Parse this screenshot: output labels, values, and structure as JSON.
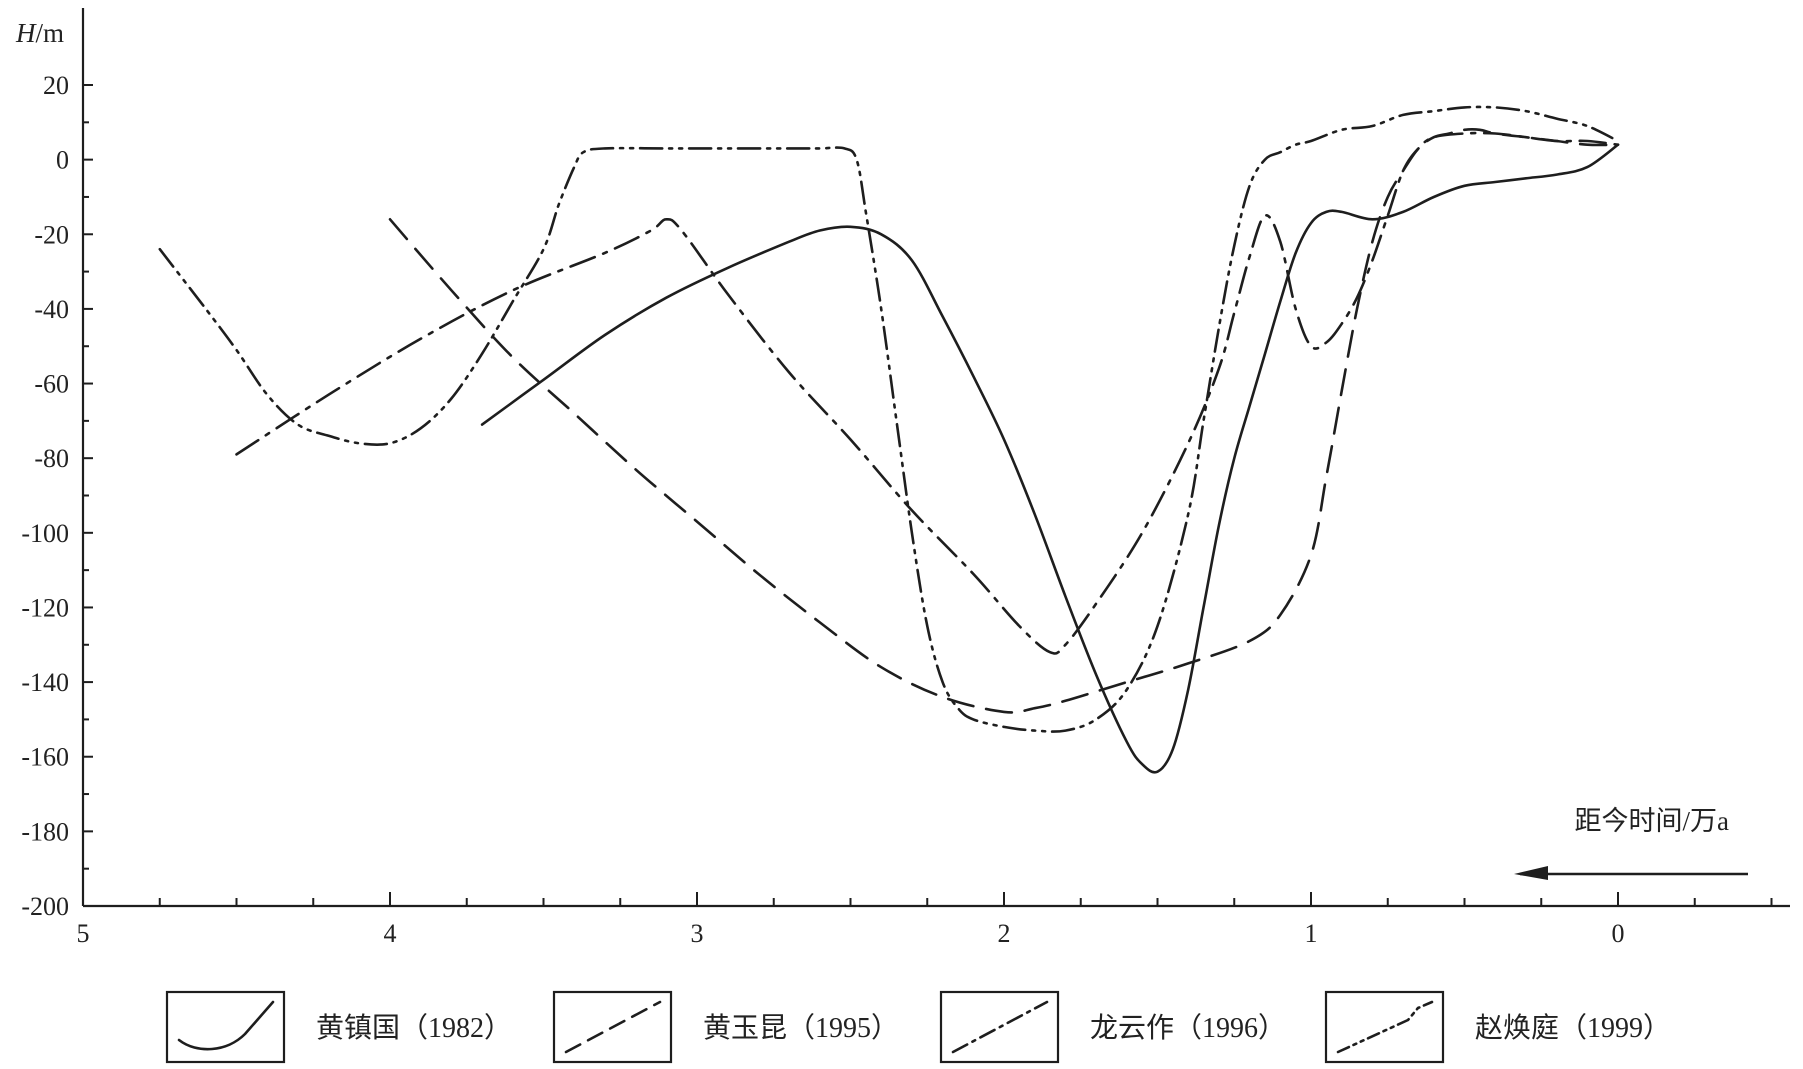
{
  "chart_data": {
    "type": "line",
    "title": "",
    "ylabel_var": "H",
    "ylabel_unit": "/m",
    "xlabel": "距今时间/万a",
    "xlim": [
      5,
      0
    ],
    "ylim": [
      -200,
      20
    ],
    "x_ticks": [
      "5",
      "4",
      "3",
      "2",
      "1",
      "0"
    ],
    "x_tick_values": [
      5,
      4,
      3,
      2,
      1,
      0
    ],
    "y_ticks": [
      "20",
      "0",
      "-20",
      "-40",
      "-60",
      "-80",
      "-100",
      "-120",
      "-140",
      "-160",
      "-180",
      "-200"
    ],
    "y_tick_values": [
      20,
      0,
      -20,
      -40,
      -60,
      -80,
      -100,
      -120,
      -140,
      -160,
      -180,
      -200
    ],
    "x_reversed": true,
    "grid": false,
    "legend_position": "bottom",
    "series": [
      {
        "name": "黄镇国（1982）",
        "dash": "solid",
        "x": [
          3.7,
          3.5,
          3.3,
          3.1,
          2.9,
          2.7,
          2.6,
          2.5,
          2.4,
          2.3,
          2.2,
          2.1,
          2.0,
          1.9,
          1.8,
          1.7,
          1.6,
          1.55,
          1.5,
          1.45,
          1.4,
          1.35,
          1.3,
          1.25,
          1.2,
          1.15,
          1.1,
          1.05,
          1.0,
          0.95,
          0.9,
          0.8,
          0.7,
          0.6,
          0.5,
          0.4,
          0.3,
          0.2,
          0.1,
          0.0
        ],
        "y": [
          -71,
          -59,
          -47,
          -37,
          -29,
          -22,
          -19,
          -18,
          -20,
          -27,
          -42,
          -58,
          -75,
          -95,
          -117,
          -138,
          -156,
          -162,
          -164,
          -158,
          -142,
          -120,
          -98,
          -80,
          -66,
          -52,
          -38,
          -25,
          -17,
          -14,
          -14,
          -16,
          -14,
          -10,
          -7,
          -6,
          -5,
          -4,
          -2,
          4
        ]
      },
      {
        "name": "黄玉昆（1995）",
        "dash": "long-dash",
        "x": [
          4.0,
          3.8,
          3.6,
          3.4,
          3.2,
          3.0,
          2.8,
          2.6,
          2.4,
          2.2,
          2.0,
          1.9,
          1.8,
          1.6,
          1.4,
          1.2,
          1.1,
          1.0,
          0.95,
          0.9,
          0.85,
          0.8,
          0.75,
          0.7,
          0.65,
          0.6,
          0.55,
          0.5,
          0.45,
          0.4,
          0.3,
          0.2,
          0.1,
          0.0
        ],
        "y": [
          -16,
          -35,
          -53,
          -68,
          -83,
          -97,
          -111,
          -124,
          -136,
          -144,
          -148,
          -147,
          -145,
          -140,
          -135,
          -129,
          -122,
          -106,
          -85,
          -62,
          -40,
          -22,
          -10,
          -3,
          3,
          6,
          7,
          8,
          8,
          7,
          6,
          5,
          4,
          4
        ]
      },
      {
        "name": "龙云作（1996）",
        "dash": "dash-dot",
        "x": [
          4.5,
          4.2,
          3.9,
          3.6,
          3.3,
          3.15,
          3.1,
          3.05,
          2.9,
          2.7,
          2.5,
          2.3,
          2.1,
          1.95,
          1.85,
          1.8,
          1.7,
          1.55,
          1.4,
          1.3,
          1.25,
          1.2,
          1.15,
          1.1,
          1.05,
          1.0,
          0.95,
          0.9,
          0.85,
          0.8,
          0.75,
          0.7,
          0.65,
          0.6,
          0.5,
          0.4,
          0.3,
          0.2,
          0.1,
          0.0
        ],
        "y": [
          -79,
          -63,
          -48,
          -35,
          -25,
          -19,
          -16,
          -19,
          -36,
          -57,
          -75,
          -94,
          -111,
          -125,
          -132,
          -130,
          -119,
          -100,
          -76,
          -56,
          -41,
          -26,
          -15,
          -22,
          -40,
          -50,
          -49,
          -44,
          -37,
          -27,
          -15,
          -3,
          3,
          6,
          7,
          7,
          6,
          5,
          5,
          4
        ]
      },
      {
        "name": "赵焕庭（1999）",
        "dash": "dash-dot-dot",
        "x": [
          4.75,
          4.6,
          4.5,
          4.4,
          4.3,
          4.2,
          4.1,
          4.0,
          3.9,
          3.8,
          3.7,
          3.6,
          3.5,
          3.45,
          3.4,
          3.37,
          3.3,
          3.1,
          2.9,
          2.7,
          2.6,
          2.52,
          2.48,
          2.45,
          2.4,
          2.35,
          2.3,
          2.25,
          2.2,
          2.15,
          2.1,
          2.0,
          1.9,
          1.8,
          1.7,
          1.6,
          1.5,
          1.4,
          1.35,
          1.3,
          1.25,
          1.2,
          1.15,
          1.1,
          1.05,
          1.0,
          0.9,
          0.8,
          0.7,
          0.6,
          0.5,
          0.4,
          0.3,
          0.2,
          0.1,
          0.0
        ],
        "y": [
          -24,
          -40,
          -51,
          -63,
          -71,
          -74,
          -76,
          -76,
          -72,
          -64,
          -52,
          -38,
          -24,
          -12,
          -2,
          2,
          3,
          3,
          3,
          3,
          3,
          3,
          0,
          -14,
          -40,
          -70,
          -100,
          -125,
          -140,
          -147,
          -150,
          -152,
          -153,
          -153,
          -150,
          -142,
          -125,
          -95,
          -70,
          -45,
          -23,
          -7,
          0,
          2,
          4,
          5,
          8,
          9,
          12,
          13,
          14,
          14,
          13,
          11,
          9,
          5
        ]
      }
    ],
    "legend": [
      {
        "name": "黄镇国（1982）",
        "dash": "solid",
        "sample": "curve"
      },
      {
        "name": "黄玉昆（1995）",
        "dash": "long-dash",
        "sample": "straight"
      },
      {
        "name": "龙云作（1996）",
        "dash": "dash-dot",
        "sample": "straight"
      },
      {
        "name": "赵焕庭（1999）",
        "dash": "dash-dot-dot",
        "sample": "kinked"
      }
    ]
  }
}
